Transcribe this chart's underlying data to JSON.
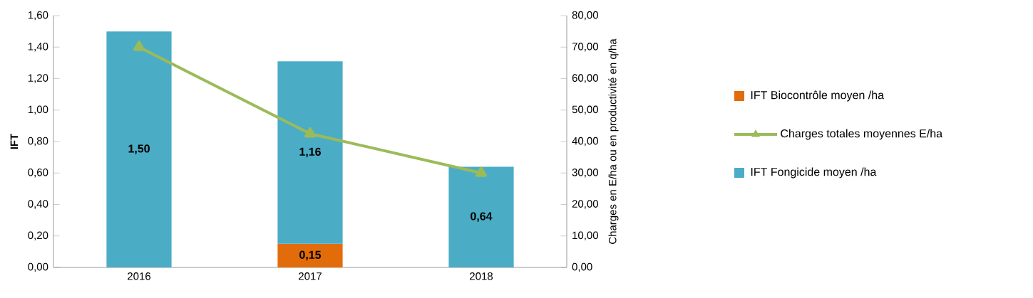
{
  "chart_data": {
    "type": "bar",
    "stacked": true,
    "ylabel": "IFT",
    "y2label": "Charges en E/ha ou en productivité en q/ha",
    "categories": [
      "2016",
      "2017",
      "2018"
    ],
    "ylim": [
      0,
      1.6
    ],
    "yticks": [
      {
        "value": 0,
        "label": "0,00"
      },
      {
        "value": 0.2,
        "label": "0,20"
      },
      {
        "value": 0.4,
        "label": "0,40"
      },
      {
        "value": 0.6,
        "label": "0,60"
      },
      {
        "value": 0.8,
        "label": "0,80"
      },
      {
        "value": 1.0,
        "label": "1,00"
      },
      {
        "value": 1.2,
        "label": "1,20"
      },
      {
        "value": 1.4,
        "label": "1,40"
      },
      {
        "value": 1.6,
        "label": "1,60"
      }
    ],
    "y2lim": [
      0,
      80
    ],
    "y2ticks": [
      {
        "value": 0,
        "label": "0,00"
      },
      {
        "value": 10,
        "label": "10,00"
      },
      {
        "value": 20,
        "label": "20,00"
      },
      {
        "value": 30,
        "label": "30,00"
      },
      {
        "value": 40,
        "label": "40,00"
      },
      {
        "value": 50,
        "label": "50,00"
      },
      {
        "value": 60,
        "label": "60,00"
      },
      {
        "value": 70,
        "label": "70,00"
      },
      {
        "value": 80,
        "label": "80,00"
      }
    ],
    "legend": "right",
    "series": [
      {
        "name": "IFT Biocontrôle moyen /ha",
        "color": "#e36c0a",
        "values": [
          null,
          0.15,
          null
        ],
        "value_labels": [
          null,
          "0,15",
          null
        ]
      },
      {
        "name": "Charges totales moyennes E/ha",
        "type": "line",
        "axis": "y2",
        "marker": "triangle",
        "color": "#9bbb59",
        "values": [
          70,
          42.5,
          30
        ]
      },
      {
        "name": "IFT Fongicide moyen /ha",
        "color": "#4bacc6",
        "values": [
          1.5,
          1.16,
          0.64
        ],
        "value_labels": [
          "1,50",
          "1,16",
          "0,64"
        ]
      }
    ]
  }
}
